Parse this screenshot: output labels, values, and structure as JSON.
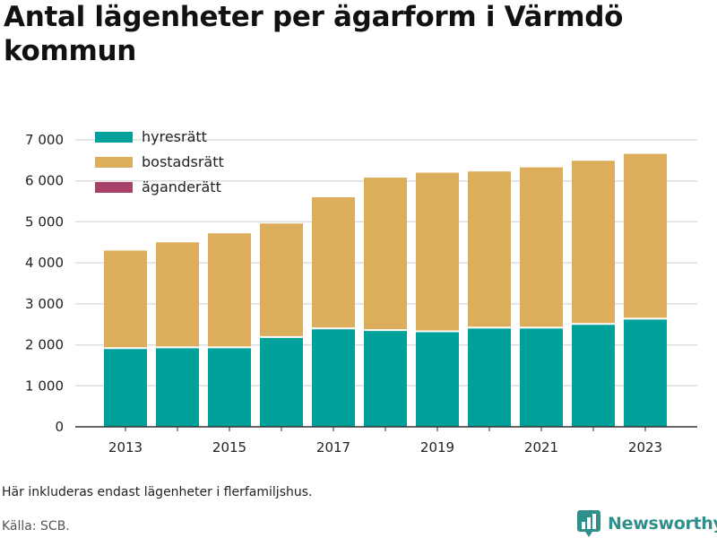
{
  "title": "Antal lägenheter per ägarform i Värmdö kommun",
  "note": "Här inkluderas endast lägenheter i flerfamiljshus.",
  "source": "Källa: SCB.",
  "brand": {
    "name": "Newsworthy",
    "logo_icon": "bar-chart-speech-bubble-icon",
    "color": "#2f8f8a"
  },
  "chart_data": {
    "type": "bar",
    "stacked": true,
    "categories": [
      2013,
      2014,
      2015,
      2016,
      2017,
      2018,
      2019,
      2020,
      2021,
      2022,
      2023
    ],
    "x_tick_labels": [
      "2013",
      "2015",
      "2017",
      "2019",
      "2021",
      "2023"
    ],
    "y_ticks": [
      {
        "value": 0,
        "label": "0"
      },
      {
        "value": 1000,
        "label": "1 000"
      },
      {
        "value": 2000,
        "label": "2 000"
      },
      {
        "value": 3000,
        "label": "3 000"
      },
      {
        "value": 4000,
        "label": "4 000"
      },
      {
        "value": 5000,
        "label": "5 000"
      },
      {
        "value": 6000,
        "label": "6 000"
      },
      {
        "value": 7000,
        "label": "7 000"
      }
    ],
    "ylim": [
      0,
      7000
    ],
    "grid": "horizontal",
    "legend_position": "top-left",
    "series": [
      {
        "name": "hyresrätt",
        "color": "#00a19a",
        "values": [
          1920,
          1940,
          1940,
          2190,
          2400,
          2360,
          2330,
          2420,
          2420,
          2510,
          2640
        ]
      },
      {
        "name": "bostadsrätt",
        "color": "#dcad5a",
        "values": [
          2380,
          2560,
          2780,
          2770,
          3200,
          3720,
          3870,
          3810,
          3910,
          3980,
          4020
        ]
      },
      {
        "name": "äganderätt",
        "color": "#a8426b",
        "values": [
          0,
          0,
          0,
          0,
          0,
          0,
          0,
          0,
          0,
          0,
          0
        ]
      }
    ]
  }
}
